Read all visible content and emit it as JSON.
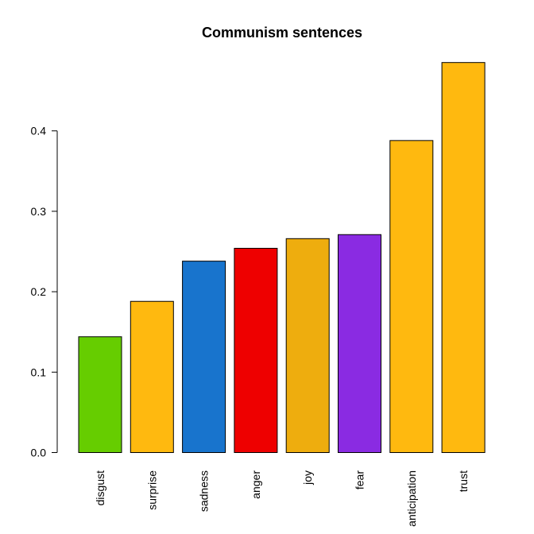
{
  "chart_data": {
    "type": "bar",
    "title": "Communism sentences",
    "xlabel": "",
    "ylabel": "",
    "categories": [
      "disgust",
      "surprise",
      "sadness",
      "anger",
      "joy",
      "fear",
      "anticipation",
      "trust"
    ],
    "values": [
      0.144,
      0.188,
      0.238,
      0.254,
      0.266,
      0.271,
      0.388,
      0.485
    ],
    "colors": [
      "#66CD00",
      "#FFB90F",
      "#1874CD",
      "#EE0000",
      "#EEAD0E",
      "#8A2BE2",
      "#FFB90F",
      "#FFB90F"
    ],
    "ylim": [
      0,
      0.5
    ],
    "yticks": [
      0.0,
      0.1,
      0.2,
      0.3,
      0.4
    ],
    "ytick_labels": [
      "0.0",
      "0.1",
      "0.2",
      "0.3",
      "0.4"
    ],
    "grid": false,
    "legend": "none"
  }
}
